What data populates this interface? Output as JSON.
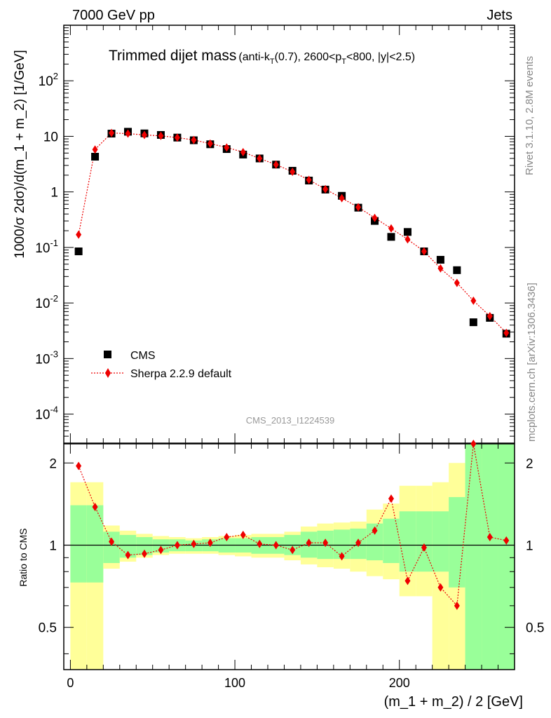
{
  "header": {
    "left": "7000 GeV pp",
    "right": "Jets"
  },
  "title": {
    "main": "Trimmed dijet mass",
    "sub_pre": "(anti-k",
    "sub_T1": "T",
    "sub_mid": "(0.7), 2600<p",
    "sub_T2": "T",
    "sub_post": "<800, |y|<2.5)"
  },
  "side_labels": {
    "rivet": "Rivet 3.1.10,  2.8M events",
    "mcplots": "mcplots.cern.ch [arXiv:1306.3436]"
  },
  "watermark": "CMS_2013_I1224539",
  "legend": {
    "data": "CMS",
    "mc": "Sherpa 2.2.9 default"
  },
  "colors": {
    "mc": "#ee0000",
    "band_inner": "#99ff99",
    "band_outer": "#ffff99",
    "data": "#000000"
  },
  "chart_data": [
    {
      "type": "scatter",
      "panel": "main",
      "ylabel": "1000/σ 2dσ)/d(m_1 + m_2) [1/GeV]",
      "yscale": "log",
      "xlim": [
        -4,
        270
      ],
      "ylim": [
        3e-05,
        1000
      ],
      "ytick_labels": [
        "10^-4",
        "10^-3",
        "10^-2",
        "10^-1",
        "1",
        "10",
        "10^2"
      ],
      "x": [
        5,
        15,
        25,
        35,
        45,
        55,
        65,
        75,
        85,
        95,
        105,
        115,
        125,
        135,
        145,
        155,
        165,
        175,
        185,
        195,
        205,
        215,
        225,
        235,
        245,
        255,
        265
      ],
      "series": [
        {
          "name": "CMS",
          "values": [
            0.085,
            4.3,
            11.2,
            12.1,
            11.3,
            10.6,
            9.5,
            8.5,
            7.2,
            5.9,
            4.7,
            4.0,
            3.1,
            2.4,
            1.6,
            1.1,
            0.85,
            0.52,
            0.3,
            0.155,
            0.19,
            0.085,
            0.06,
            0.039,
            0.0045,
            0.0054,
            0.0028
          ]
        },
        {
          "name": "Sherpa 2.2.9 default",
          "values": [
            0.17,
            5.8,
            11.5,
            11.2,
            10.6,
            10.2,
            9.5,
            8.6,
            7.4,
            6.3,
            5.2,
            4.0,
            3.1,
            2.3,
            1.65,
            1.12,
            0.77,
            0.53,
            0.34,
            0.22,
            0.14,
            0.085,
            0.042,
            0.023,
            0.011,
            0.0058,
            0.0029
          ]
        }
      ]
    },
    {
      "type": "scatter",
      "panel": "ratio",
      "xlabel": "(m_1 + m_2) / 2 [GeV]",
      "ylabel": "Ratio to CMS",
      "xlim": [
        -4,
        270
      ],
      "ylim": [
        0.35,
        2.35
      ],
      "x_ticks": [
        0,
        100,
        200
      ],
      "y_ticks": [
        0.5,
        1,
        2
      ],
      "x": [
        5,
        15,
        25,
        35,
        45,
        55,
        65,
        75,
        85,
        95,
        105,
        115,
        125,
        135,
        145,
        155,
        165,
        175,
        185,
        195,
        205,
        215,
        225,
        235,
        245,
        255,
        265
      ],
      "series": [
        {
          "name": "Sherpa 2.2.9 default",
          "values": [
            1.95,
            1.38,
            1.03,
            0.92,
            0.93,
            0.96,
            1.0,
            1.01,
            1.02,
            1.07,
            1.09,
            1.01,
            1.0,
            0.96,
            1.02,
            1.02,
            0.91,
            1.02,
            1.13,
            1.48,
            0.74,
            0.98,
            0.7,
            0.6,
            2.35,
            1.07,
            1.04
          ]
        }
      ],
      "bins": [
        0,
        10,
        20,
        30,
        40,
        50,
        60,
        70,
        80,
        90,
        100,
        110,
        120,
        130,
        140,
        150,
        160,
        170,
        180,
        190,
        200,
        210,
        220,
        230,
        240,
        250,
        260,
        270
      ],
      "band_inner": [
        [
          0.73,
          1.4
        ],
        [
          0.73,
          1.4
        ],
        [
          0.86,
          1.12
        ],
        [
          0.9,
          1.09
        ],
        [
          0.92,
          1.07
        ],
        [
          0.94,
          1.05
        ],
        [
          0.95,
          1.05
        ],
        [
          0.95,
          1.04
        ],
        [
          0.95,
          1.05
        ],
        [
          0.94,
          1.06
        ],
        [
          0.94,
          1.06
        ],
        [
          0.93,
          1.07
        ],
        [
          0.93,
          1.07
        ],
        [
          0.92,
          1.09
        ],
        [
          0.9,
          1.12
        ],
        [
          0.89,
          1.13
        ],
        [
          0.89,
          1.14
        ],
        [
          0.89,
          1.15
        ],
        [
          0.88,
          1.2
        ],
        [
          0.86,
          1.25
        ],
        [
          0.8,
          1.33
        ],
        [
          0.8,
          1.33
        ],
        [
          0.8,
          1.33
        ],
        [
          0.7,
          1.5
        ],
        [
          0.3,
          2.4
        ],
        [
          0.3,
          2.4
        ],
        [
          0.3,
          2.4
        ]
      ],
      "band_outer": [
        [
          0.3,
          1.7
        ],
        [
          0.3,
          1.7
        ],
        [
          0.82,
          1.18
        ],
        [
          0.87,
          1.13
        ],
        [
          0.9,
          1.1
        ],
        [
          0.92,
          1.08
        ],
        [
          0.93,
          1.07
        ],
        [
          0.93,
          1.06
        ],
        [
          0.93,
          1.07
        ],
        [
          0.92,
          1.08
        ],
        [
          0.91,
          1.09
        ],
        [
          0.9,
          1.1
        ],
        [
          0.9,
          1.1
        ],
        [
          0.88,
          1.12
        ],
        [
          0.85,
          1.17
        ],
        [
          0.83,
          1.2
        ],
        [
          0.82,
          1.21
        ],
        [
          0.8,
          1.22
        ],
        [
          0.77,
          1.35
        ],
        [
          0.75,
          1.42
        ],
        [
          0.65,
          1.65
        ],
        [
          0.65,
          1.65
        ],
        [
          0.3,
          1.7
        ],
        [
          0.3,
          2.0
        ],
        [
          0.3,
          2.4
        ],
        [
          0.3,
          2.4
        ],
        [
          0.3,
          2.4
        ]
      ]
    }
  ]
}
